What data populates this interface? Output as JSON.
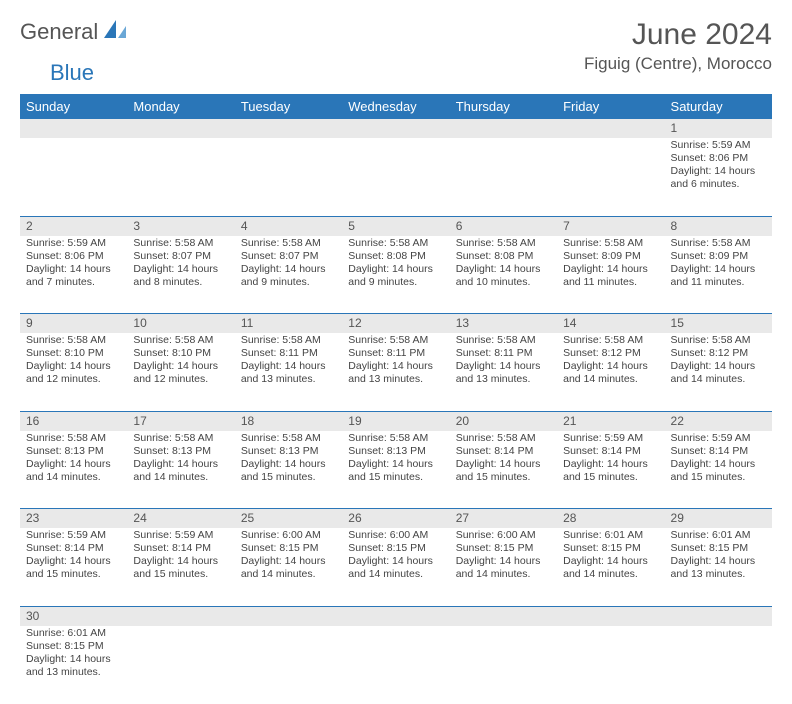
{
  "logo": {
    "part1": "General",
    "part2": "Blue"
  },
  "title": "June 2024",
  "location": "Figuig (Centre), Morocco",
  "days": [
    "Sunday",
    "Monday",
    "Tuesday",
    "Wednesday",
    "Thursday",
    "Friday",
    "Saturday"
  ],
  "colors": {
    "header_bg": "#2a76b8",
    "header_text": "#ffffff",
    "daynum_bg": "#e9e9e9",
    "row_border": "#2a76b8",
    "text": "#444444",
    "title_text": "#555555"
  },
  "typography": {
    "title_fontsize": 30,
    "location_fontsize": 17,
    "header_fontsize": 13,
    "daynum_fontsize": 12,
    "cell_fontsize": 10.5
  },
  "labels": {
    "sunrise": "Sunrise:",
    "sunset": "Sunset:",
    "daylight": "Daylight:"
  },
  "weeks": [
    [
      null,
      null,
      null,
      null,
      null,
      null,
      {
        "n": "1",
        "sunrise": "5:59 AM",
        "sunset": "8:06 PM",
        "daylight": "14 hours and 6 minutes."
      }
    ],
    [
      {
        "n": "2",
        "sunrise": "5:59 AM",
        "sunset": "8:06 PM",
        "daylight": "14 hours and 7 minutes."
      },
      {
        "n": "3",
        "sunrise": "5:58 AM",
        "sunset": "8:07 PM",
        "daylight": "14 hours and 8 minutes."
      },
      {
        "n": "4",
        "sunrise": "5:58 AM",
        "sunset": "8:07 PM",
        "daylight": "14 hours and 9 minutes."
      },
      {
        "n": "5",
        "sunrise": "5:58 AM",
        "sunset": "8:08 PM",
        "daylight": "14 hours and 9 minutes."
      },
      {
        "n": "6",
        "sunrise": "5:58 AM",
        "sunset": "8:08 PM",
        "daylight": "14 hours and 10 minutes."
      },
      {
        "n": "7",
        "sunrise": "5:58 AM",
        "sunset": "8:09 PM",
        "daylight": "14 hours and 11 minutes."
      },
      {
        "n": "8",
        "sunrise": "5:58 AM",
        "sunset": "8:09 PM",
        "daylight": "14 hours and 11 minutes."
      }
    ],
    [
      {
        "n": "9",
        "sunrise": "5:58 AM",
        "sunset": "8:10 PM",
        "daylight": "14 hours and 12 minutes."
      },
      {
        "n": "10",
        "sunrise": "5:58 AM",
        "sunset": "8:10 PM",
        "daylight": "14 hours and 12 minutes."
      },
      {
        "n": "11",
        "sunrise": "5:58 AM",
        "sunset": "8:11 PM",
        "daylight": "14 hours and 13 minutes."
      },
      {
        "n": "12",
        "sunrise": "5:58 AM",
        "sunset": "8:11 PM",
        "daylight": "14 hours and 13 minutes."
      },
      {
        "n": "13",
        "sunrise": "5:58 AM",
        "sunset": "8:11 PM",
        "daylight": "14 hours and 13 minutes."
      },
      {
        "n": "14",
        "sunrise": "5:58 AM",
        "sunset": "8:12 PM",
        "daylight": "14 hours and 14 minutes."
      },
      {
        "n": "15",
        "sunrise": "5:58 AM",
        "sunset": "8:12 PM",
        "daylight": "14 hours and 14 minutes."
      }
    ],
    [
      {
        "n": "16",
        "sunrise": "5:58 AM",
        "sunset": "8:13 PM",
        "daylight": "14 hours and 14 minutes."
      },
      {
        "n": "17",
        "sunrise": "5:58 AM",
        "sunset": "8:13 PM",
        "daylight": "14 hours and 14 minutes."
      },
      {
        "n": "18",
        "sunrise": "5:58 AM",
        "sunset": "8:13 PM",
        "daylight": "14 hours and 15 minutes."
      },
      {
        "n": "19",
        "sunrise": "5:58 AM",
        "sunset": "8:13 PM",
        "daylight": "14 hours and 15 minutes."
      },
      {
        "n": "20",
        "sunrise": "5:58 AM",
        "sunset": "8:14 PM",
        "daylight": "14 hours and 15 minutes."
      },
      {
        "n": "21",
        "sunrise": "5:59 AM",
        "sunset": "8:14 PM",
        "daylight": "14 hours and 15 minutes."
      },
      {
        "n": "22",
        "sunrise": "5:59 AM",
        "sunset": "8:14 PM",
        "daylight": "14 hours and 15 minutes."
      }
    ],
    [
      {
        "n": "23",
        "sunrise": "5:59 AM",
        "sunset": "8:14 PM",
        "daylight": "14 hours and 15 minutes."
      },
      {
        "n": "24",
        "sunrise": "5:59 AM",
        "sunset": "8:14 PM",
        "daylight": "14 hours and 15 minutes."
      },
      {
        "n": "25",
        "sunrise": "6:00 AM",
        "sunset": "8:15 PM",
        "daylight": "14 hours and 14 minutes."
      },
      {
        "n": "26",
        "sunrise": "6:00 AM",
        "sunset": "8:15 PM",
        "daylight": "14 hours and 14 minutes."
      },
      {
        "n": "27",
        "sunrise": "6:00 AM",
        "sunset": "8:15 PM",
        "daylight": "14 hours and 14 minutes."
      },
      {
        "n": "28",
        "sunrise": "6:01 AM",
        "sunset": "8:15 PM",
        "daylight": "14 hours and 14 minutes."
      },
      {
        "n": "29",
        "sunrise": "6:01 AM",
        "sunset": "8:15 PM",
        "daylight": "14 hours and 13 minutes."
      }
    ],
    [
      {
        "n": "30",
        "sunrise": "6:01 AM",
        "sunset": "8:15 PM",
        "daylight": "14 hours and 13 minutes."
      },
      null,
      null,
      null,
      null,
      null,
      null
    ]
  ]
}
